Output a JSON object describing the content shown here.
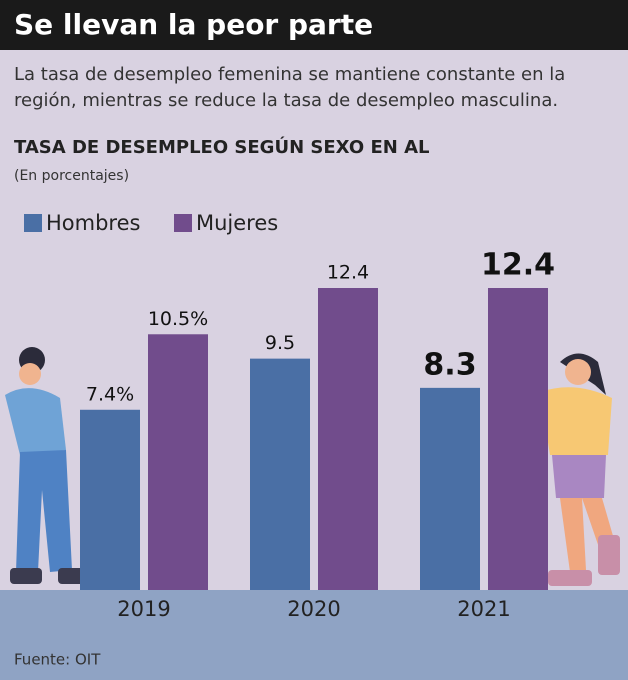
{
  "chart_data": {
    "type": "bar",
    "title": "Se llevan la peor parte",
    "subtitle": "La tasa de desempleo femenina se mantiene constante en la región, mientras se reduce la tasa de desempleo masculina.",
    "chart_title": "TASA DE DESEMPLEO SEGÚN SEXO EN AL",
    "unit_note": "(En porcentajes)",
    "categories": [
      "2019",
      "2020",
      "2021"
    ],
    "series": [
      {
        "name": "Hombres",
        "color": "#4a6fa5",
        "values": [
          7.4,
          9.5,
          8.3
        ],
        "value_labels": [
          "7.4%",
          "9.5",
          "8.3"
        ]
      },
      {
        "name": "Mujeres",
        "color": "#714c8c",
        "values": [
          10.5,
          12.4,
          12.4
        ],
        "value_labels": [
          "10.5%",
          "12.4",
          "12.4"
        ]
      }
    ],
    "source": "Fuente: OIT"
  }
}
